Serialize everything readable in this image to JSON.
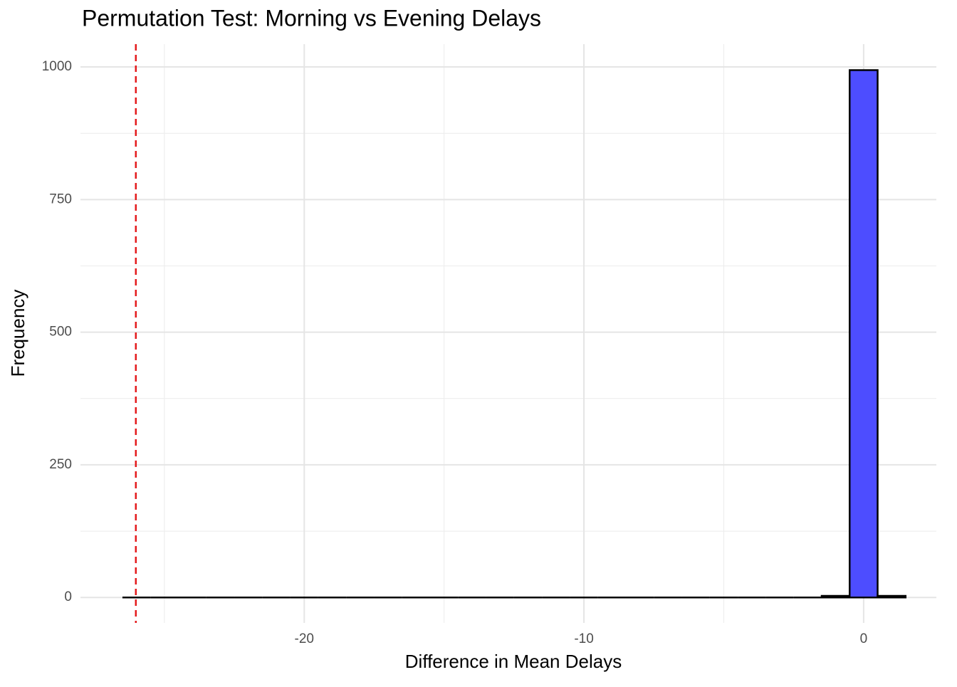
{
  "chart_data": {
    "type": "histogram",
    "title": "Permutation Test: Morning vs Evening Delays",
    "x_label": "Difference in Mean Delays",
    "y_label": "Frequency",
    "bins": [
      -26.5,
      -25.5,
      -24.5,
      -23.5,
      -22.5,
      -21.5,
      -20.5,
      -19.5,
      -18.5,
      -17.5,
      -16.5,
      -15.5,
      -14.5,
      -13.5,
      -12.5,
      -11.5,
      -10.5,
      -9.5,
      -8.5,
      -7.5,
      -6.5,
      -5.5,
      -4.5,
      -3.5,
      -2.5,
      -1.5,
      -0.5,
      0.5,
      1.5
    ],
    "values": [
      0,
      0,
      0,
      0,
      0,
      0,
      0,
      0,
      0,
      0,
      0,
      0,
      0,
      0,
      0,
      0,
      0,
      0,
      0,
      0,
      0,
      0,
      0,
      0,
      0,
      3,
      994,
      3
    ],
    "color": "#4d4dff",
    "xlim": [
      -28,
      2.6
    ],
    "ylim": [
      -48,
      1043
    ],
    "xticks": [
      -20,
      -10,
      0
    ],
    "yticks": [
      0,
      250,
      500,
      750,
      1000
    ],
    "x_minor_grid": [
      -25,
      -15,
      -5
    ],
    "y_minor_grid": [
      125,
      375,
      625,
      875
    ],
    "grid": true,
    "vline": {
      "x": -26.02,
      "color": "#e41a1c",
      "dashed": true
    }
  }
}
